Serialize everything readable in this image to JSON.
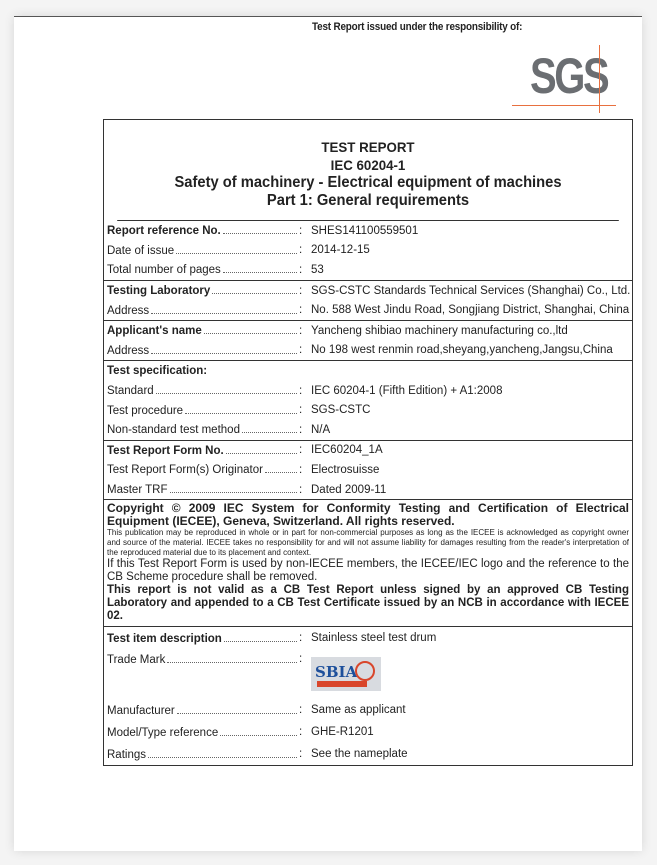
{
  "issued_by_label": "Test Report issued under the responsibility of:",
  "logo_text": "SGS",
  "colors": {
    "logo_gray": "#6b6e72",
    "logo_accent": "#e8703f"
  },
  "header": {
    "title": "TEST REPORT",
    "standard": "IEC 60204-1",
    "subtitle": "Safety of machinery - Electrical equipment of machines",
    "part": "Part 1: General requirements"
  },
  "groups": [
    {
      "rows": [
        {
          "label": "Report reference No.",
          "bold": true,
          "value": "SHES141100559501"
        },
        {
          "label": "Date of issue",
          "value": "2014-12-15"
        },
        {
          "label": "Total number of pages",
          "value": "53"
        }
      ]
    },
    {
      "rows": [
        {
          "label": "Testing Laboratory",
          "bold": true,
          "value": "SGS-CSTC Standards Technical Services (Shanghai) Co., Ltd."
        },
        {
          "label": "Address",
          "value": "No. 588 West Jindu Road, Songjiang District, Shanghai, China"
        }
      ]
    },
    {
      "rows": [
        {
          "label": "Applicant's name",
          "bold": true,
          "value": "Yancheng shibiao machinery manufacturing co.,ltd"
        },
        {
          "label": "Address",
          "value": "No 198 west renmin road,sheyang,yancheng,Jangsu,China"
        }
      ]
    },
    {
      "rows": [
        {
          "label": "Test specification:",
          "bold": true,
          "value": "",
          "noleader": true
        },
        {
          "label": "Standard",
          "value": "IEC 60204-1 (Fifth Edition) + A1:2008"
        },
        {
          "label": "Test procedure",
          "value": "SGS-CSTC"
        },
        {
          "label": "Non-standard test method",
          "value": "N/A"
        }
      ]
    },
    {
      "rows": [
        {
          "label": "Test Report Form No.",
          "bold": true,
          "value": "IEC60204_1A"
        },
        {
          "label": "Test Report Form(s) Originator",
          "value": "Electrosuisse"
        },
        {
          "label": "Master TRF",
          "value": "Dated 2009-11"
        }
      ]
    }
  ],
  "copyright": {
    "heading": "Copyright © 2009 IEC System for Conformity Testing and Certification of Electrical Equipment (IECEE), Geneva, Switzerland. All rights reserved.",
    "notice": "This publication may be reproduced in whole or in part for non-commercial purposes as long as the IECEE is acknowledged as copyright owner and source of the material. IECEE takes no responsibility for and will not assume liability for damages resulting from the reader's interpretation of the reproduced material due to its placement and context.",
    "non_member": "If this Test Report Form is used by non-IECEE members, the IECEE/IEC logo and the reference to the CB Scheme procedure shall be removed.",
    "validity": "This report is not valid as a CB Test Report unless signed by an approved CB Testing Laboratory and appended to a CB Test Certificate issued by an NCB in accordance with IECEE 02."
  },
  "item": {
    "description": {
      "label": "Test item description",
      "value": "Stainless steel test drum"
    },
    "trade_mark": {
      "label": "Trade Mark",
      "logo_text": "SBIA"
    },
    "manufacturer": {
      "label": "Manufacturer",
      "value": "Same as applicant"
    },
    "model": {
      "label": "Model/Type reference",
      "value": "GHE-R1201"
    },
    "ratings": {
      "label": "Ratings",
      "value": "See the nameplate"
    }
  }
}
